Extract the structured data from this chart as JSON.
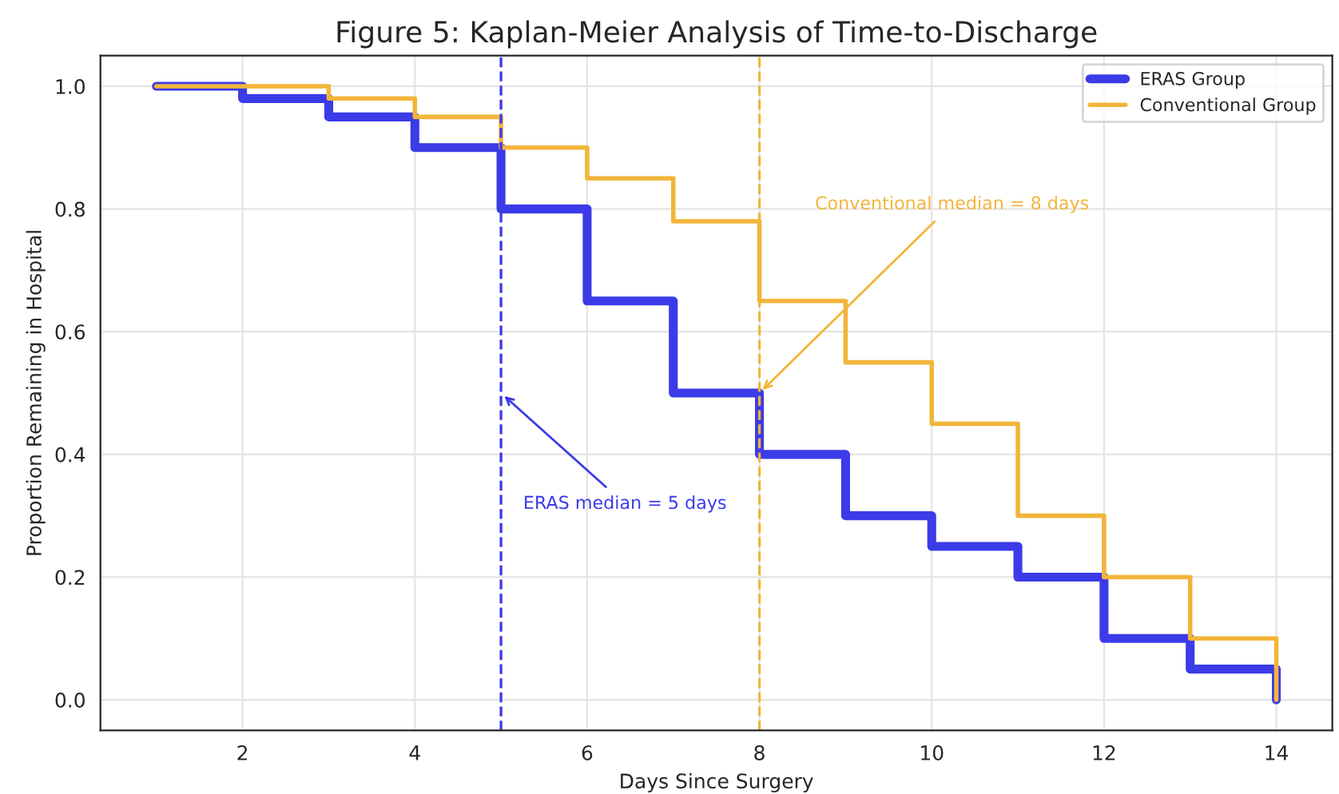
{
  "chart_data": {
    "type": "step",
    "title": "Figure 5: Kaplan-Meier Analysis of Time-to-Discharge",
    "xlabel": "Days Since Surgery",
    "ylabel": "Proportion Remaining in Hospital",
    "x": [
      1,
      2,
      3,
      4,
      5,
      6,
      7,
      8,
      9,
      10,
      11,
      12,
      13,
      14
    ],
    "series": [
      {
        "name": "ERAS Group",
        "color": "#3b3be8",
        "values": [
          1.0,
          0.98,
          0.95,
          0.9,
          0.8,
          0.65,
          0.5,
          0.4,
          0.3,
          0.25,
          0.2,
          0.1,
          0.05,
          0.0
        ]
      },
      {
        "name": "Conventional Group",
        "color": "#f2b53a",
        "values": [
          1.0,
          1.0,
          0.98,
          0.95,
          0.9,
          0.85,
          0.78,
          0.65,
          0.55,
          0.45,
          0.3,
          0.2,
          0.1,
          0.0
        ]
      }
    ],
    "xlim": [
      0.35,
      14.65
    ],
    "xticks": [
      2,
      4,
      6,
      8,
      10,
      12,
      14
    ],
    "ylim": [
      -0.05,
      1.05
    ],
    "yticks": [
      {
        "value": 0,
        "label": "0.0"
      },
      {
        "value": 0.2,
        "label": "0.2"
      },
      {
        "value": 0.4,
        "label": "0.4"
      },
      {
        "value": 0.6,
        "label": "0.6"
      },
      {
        "value": 0.8,
        "label": "0.8"
      },
      {
        "value": 1,
        "label": "1.0"
      }
    ],
    "ref_lines": [
      {
        "axis": "x",
        "value": 5,
        "color": "#3b3be8",
        "line_style": "dashed"
      },
      {
        "axis": "x",
        "value": 8,
        "color": "#f2b53a",
        "line_style": "dashed"
      }
    ],
    "annotations": [
      {
        "text": "ERAS median = 5 days",
        "x": 5,
        "y": 0.5
      },
      {
        "text": "Conventional median = 8 days",
        "x": 8,
        "y": 0.5
      }
    ],
    "grid": true,
    "legend": "top right",
    "line_style": "solid"
  }
}
